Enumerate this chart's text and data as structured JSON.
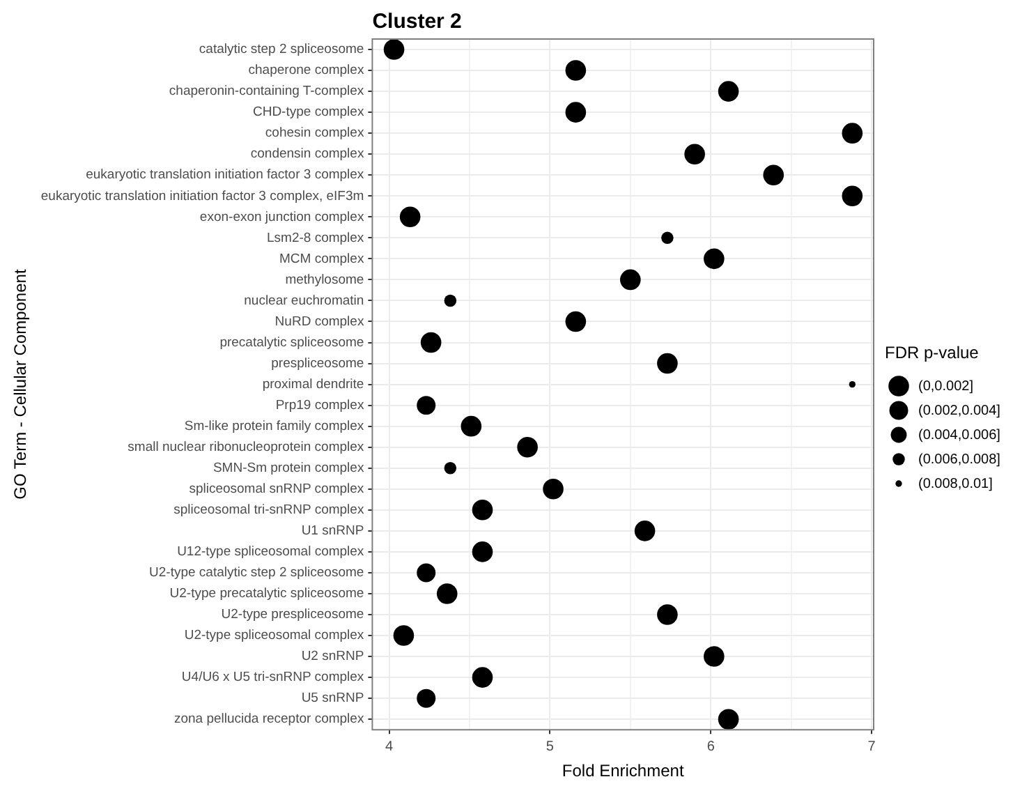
{
  "chart_data": {
    "type": "bubble",
    "orientation": "horizontal",
    "title": "Cluster 2",
    "xlabel": "Fold Enrichment",
    "ylabel": "GO Term - Cellular Component",
    "legend_title": "FDR p-value",
    "categories": [
      "catalytic step 2 spliceosome",
      "chaperone complex",
      "chaperonin-containing T-complex",
      "CHD-type complex",
      "cohesin complex",
      "condensin complex",
      "eukaryotic translation initiation factor 3 complex",
      "eukaryotic translation initiation factor 3 complex, eIF3m",
      "exon-exon junction complex",
      "Lsm2-8 complex",
      "MCM complex",
      "methylosome",
      "nuclear euchromatin",
      "NuRD complex",
      "precatalytic spliceosome",
      "prespliceosome",
      "proximal dendrite",
      "Prp19 complex",
      "Sm-like protein family complex",
      "small nuclear ribonucleoprotein complex",
      "SMN-Sm protein complex",
      "spliceosomal snRNP complex",
      "spliceosomal tri-snRNP complex",
      "U1 snRNP",
      "U12-type spliceosomal complex",
      "U2-type catalytic step 2 spliceosome",
      "U2-type precatalytic spliceosome",
      "U2-type prespliceosome",
      "U2-type spliceosomal complex",
      "U2 snRNP",
      "U4/U6 x U5 tri-snRNP complex",
      "U5 snRNP",
      "zona pellucida receptor complex"
    ],
    "values": [
      4.03,
      5.16,
      6.11,
      5.16,
      6.88,
      5.9,
      6.39,
      6.88,
      4.13,
      5.73,
      6.02,
      5.5,
      4.38,
      5.16,
      4.26,
      5.73,
      6.88,
      4.23,
      4.51,
      4.86,
      4.38,
      5.02,
      4.58,
      5.59,
      4.58,
      4.23,
      4.36,
      5.73,
      4.09,
      6.02,
      4.58,
      4.23,
      6.11
    ],
    "sizes": [
      1,
      1,
      1,
      1,
      1,
      1,
      1,
      1,
      1,
      0.35,
      1,
      1,
      0.35,
      1,
      1,
      1,
      0.1,
      0.83,
      1,
      1,
      0.35,
      1,
      1,
      1,
      1,
      0.83,
      1,
      1,
      1,
      1,
      1,
      0.83,
      1
    ],
    "size_legend": [
      {
        "value": 1,
        "label": "(0,0.002]"
      },
      {
        "value": 0.83,
        "label": "(0.002,0.004]"
      },
      {
        "value": 0.6,
        "label": "(0.004,0.006]"
      },
      {
        "value": 0.35,
        "label": "(0.006,0.008]"
      },
      {
        "value": 0.1,
        "label": "(0.008,0.01]"
      }
    ],
    "color": "#000000",
    "xlim": [
      3.895,
      7.013
    ],
    "xticks": [
      4,
      {
        "value": 4.5,
        "label": null
      },
      5,
      {
        "value": 5.5,
        "label": null
      },
      6,
      {
        "value": 6.5,
        "label": null
      },
      7
    ],
    "grid": true
  }
}
